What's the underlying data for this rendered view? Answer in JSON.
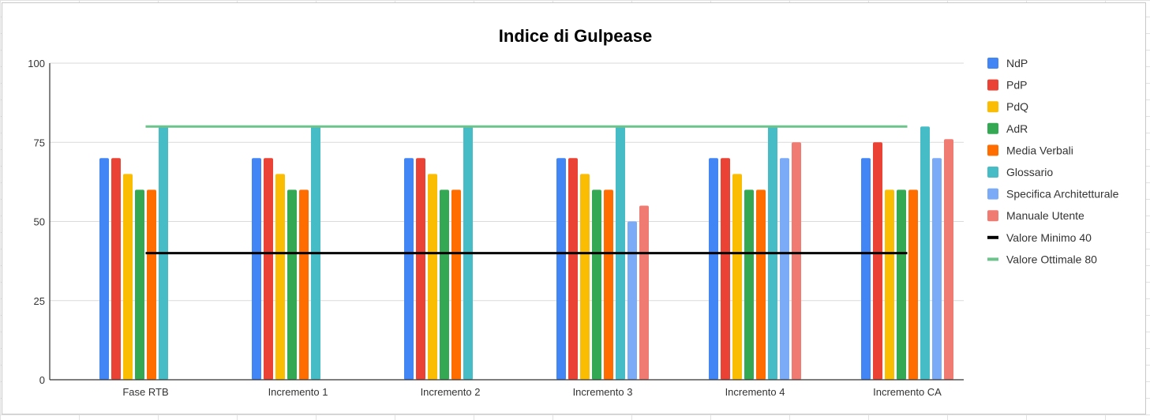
{
  "chart_data": {
    "type": "bar",
    "title": "Indice di Gulpease",
    "xlabel": "",
    "ylabel": "",
    "ylim": [
      0,
      100
    ],
    "yticks": [
      0,
      25,
      50,
      75,
      100
    ],
    "ytick_labels": [
      "0",
      "25",
      "50",
      "75",
      "100"
    ],
    "grid": true,
    "legend_position": "right",
    "categories": [
      "Fase RTB",
      "Incremento 1",
      "Incremento 2",
      "Incremento 3",
      "Incremento 4",
      "Incremento CA"
    ],
    "series": [
      {
        "name": "NdP",
        "color": "#4285f4",
        "values": [
          70,
          70,
          70,
          70,
          70,
          70
        ]
      },
      {
        "name": "PdP",
        "color": "#ea4335",
        "values": [
          70,
          70,
          70,
          70,
          70,
          75
        ]
      },
      {
        "name": "PdQ",
        "color": "#fbbc04",
        "values": [
          65,
          65,
          65,
          65,
          65,
          60
        ]
      },
      {
        "name": "AdR",
        "color": "#34a853",
        "values": [
          60,
          60,
          60,
          60,
          60,
          60
        ]
      },
      {
        "name": "Media Verbali",
        "color": "#ff6d01",
        "values": [
          60,
          60,
          60,
          60,
          60,
          60
        ]
      },
      {
        "name": "Glossario",
        "color": "#46bdc6",
        "values": [
          80,
          80,
          80,
          80,
          80,
          80
        ]
      },
      {
        "name": "Specifica Architetturale",
        "color": "#7baaf7",
        "values": [
          null,
          null,
          null,
          50,
          70,
          70
        ]
      },
      {
        "name": "Manuale Utente",
        "color": "#f07b72",
        "values": [
          null,
          null,
          null,
          55,
          75,
          76
        ]
      }
    ],
    "lines": [
      {
        "name": "Valore Minimo 40",
        "color": "#000000",
        "values": [
          40,
          40,
          40,
          40,
          40,
          40
        ]
      },
      {
        "name": "Valore Ottimale 80",
        "color": "#6dc38c",
        "values": [
          80,
          80,
          80,
          80,
          80,
          80
        ]
      }
    ]
  }
}
